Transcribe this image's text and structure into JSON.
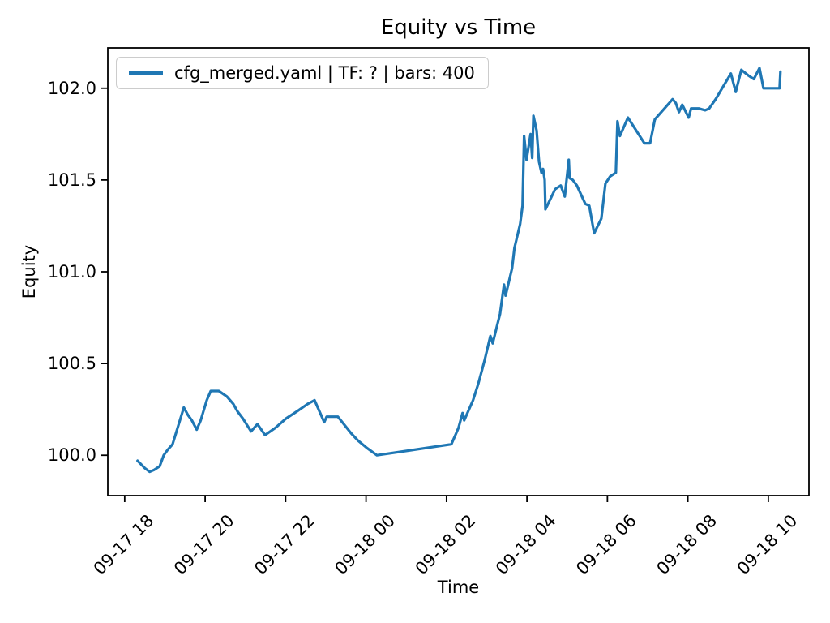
{
  "chart_data": {
    "type": "line",
    "title": "Equity vs Time",
    "xlabel": "Time",
    "ylabel": "Equity",
    "legend": {
      "position": "upper left",
      "entries": [
        "cfg_merged.yaml | TF: ? | bars: 400"
      ]
    },
    "line_color": "#1f77b4",
    "grid": false,
    "x_unit": "hours after 09-17 18:00",
    "x_tick_hours": [
      0,
      2,
      4,
      6,
      8,
      10,
      12,
      14,
      16
    ],
    "x_tick_labels": [
      "09-17 18",
      "09-17 20",
      "09-17 22",
      "09-18 00",
      "09-18 02",
      "09-18 04",
      "09-18 06",
      "09-18 08",
      "09-18 10"
    ],
    "y_ticks": [
      100.0,
      100.5,
      101.0,
      101.5,
      102.0
    ],
    "xlim_hours": [
      -0.42,
      17.01
    ],
    "ylim": [
      99.78,
      102.22
    ],
    "series": [
      {
        "name": "cfg_merged.yaml | TF: ? | bars: 400",
        "color": "#1f77b4",
        "points": [
          [
            0.32,
            99.97
          ],
          [
            0.5,
            99.93
          ],
          [
            0.62,
            99.91
          ],
          [
            0.73,
            99.92
          ],
          [
            0.87,
            99.94
          ],
          [
            0.97,
            100.0
          ],
          [
            1.07,
            100.03
          ],
          [
            1.19,
            100.06
          ],
          [
            1.47,
            100.26
          ],
          [
            1.57,
            100.22
          ],
          [
            1.67,
            100.19
          ],
          [
            1.79,
            100.14
          ],
          [
            1.89,
            100.19
          ],
          [
            2.04,
            100.3
          ],
          [
            2.14,
            100.35
          ],
          [
            2.34,
            100.35
          ],
          [
            2.54,
            100.32
          ],
          [
            2.7,
            100.28
          ],
          [
            2.8,
            100.24
          ],
          [
            2.94,
            100.2
          ],
          [
            3.14,
            100.13
          ],
          [
            3.3,
            100.17
          ],
          [
            3.49,
            100.11
          ],
          [
            3.75,
            100.15
          ],
          [
            4.01,
            100.2
          ],
          [
            4.29,
            100.24
          ],
          [
            4.55,
            100.28
          ],
          [
            4.72,
            100.3
          ],
          [
            4.96,
            100.18
          ],
          [
            5.02,
            100.21
          ],
          [
            5.3,
            100.21
          ],
          [
            5.63,
            100.12
          ],
          [
            5.8,
            100.08
          ],
          [
            6.02,
            100.04
          ],
          [
            6.27,
            100.0
          ],
          [
            8.12,
            100.06
          ],
          [
            8.24,
            100.12
          ],
          [
            8.3,
            100.15
          ],
          [
            8.4,
            100.23
          ],
          [
            8.44,
            100.19
          ],
          [
            8.66,
            100.3
          ],
          [
            8.79,
            100.39
          ],
          [
            8.89,
            100.47
          ],
          [
            8.95,
            100.52
          ],
          [
            9.09,
            100.65
          ],
          [
            9.15,
            100.61
          ],
          [
            9.25,
            100.7
          ],
          [
            9.33,
            100.77
          ],
          [
            9.43,
            100.93
          ],
          [
            9.47,
            100.87
          ],
          [
            9.63,
            101.02
          ],
          [
            9.69,
            101.13
          ],
          [
            9.83,
            101.26
          ],
          [
            9.89,
            101.36
          ],
          [
            9.93,
            101.74
          ],
          [
            9.99,
            101.61
          ],
          [
            10.09,
            101.75
          ],
          [
            10.13,
            101.62
          ],
          [
            10.16,
            101.85
          ],
          [
            10.24,
            101.77
          ],
          [
            10.3,
            101.6
          ],
          [
            10.36,
            101.54
          ],
          [
            10.4,
            101.56
          ],
          [
            10.44,
            101.5
          ],
          [
            10.46,
            101.34
          ],
          [
            10.7,
            101.45
          ],
          [
            10.84,
            101.47
          ],
          [
            10.94,
            101.41
          ],
          [
            11.04,
            101.61
          ],
          [
            11.06,
            101.51
          ],
          [
            11.14,
            101.5
          ],
          [
            11.24,
            101.47
          ],
          [
            11.45,
            101.37
          ],
          [
            11.55,
            101.36
          ],
          [
            11.67,
            101.21
          ],
          [
            11.85,
            101.29
          ],
          [
            11.95,
            101.48
          ],
          [
            12.07,
            101.52
          ],
          [
            12.21,
            101.54
          ],
          [
            12.25,
            101.82
          ],
          [
            12.31,
            101.74
          ],
          [
            12.51,
            101.84
          ],
          [
            12.92,
            101.7
          ],
          [
            13.06,
            101.7
          ],
          [
            13.18,
            101.83
          ],
          [
            13.62,
            101.94
          ],
          [
            13.7,
            101.92
          ],
          [
            13.78,
            101.87
          ],
          [
            13.86,
            101.91
          ],
          [
            14.02,
            101.84
          ],
          [
            14.08,
            101.89
          ],
          [
            14.27,
            101.89
          ],
          [
            14.43,
            101.88
          ],
          [
            14.53,
            101.89
          ],
          [
            14.69,
            101.94
          ],
          [
            15.07,
            102.08
          ],
          [
            15.19,
            101.98
          ],
          [
            15.33,
            102.1
          ],
          [
            15.5,
            102.07
          ],
          [
            15.64,
            102.05
          ],
          [
            15.78,
            102.11
          ],
          [
            15.88,
            102.0
          ],
          [
            16.28,
            102.0
          ],
          [
            16.3,
            102.09
          ]
        ]
      }
    ]
  }
}
